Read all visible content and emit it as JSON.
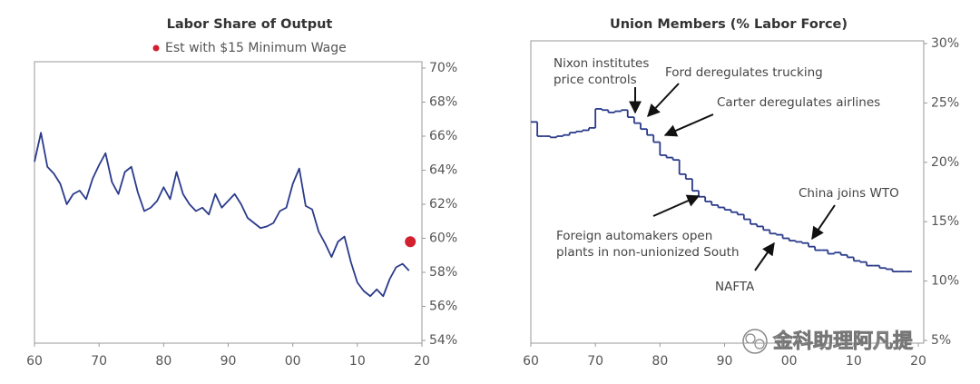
{
  "chart_data": [
    {
      "type": "line",
      "title": "Labor Share of Output",
      "y_axis_side": "right",
      "xlim": [
        1960,
        2020
      ],
      "ylim": [
        54,
        70
      ],
      "xticks": [
        {
          "value": 1960,
          "label": "60"
        },
        {
          "value": 1970,
          "label": "70"
        },
        {
          "value": 1980,
          "label": "80"
        },
        {
          "value": 1990,
          "label": "90"
        },
        {
          "value": 2000,
          "label": "00"
        },
        {
          "value": 2010,
          "label": "10"
        },
        {
          "value": 2020,
          "label": "20"
        }
      ],
      "yticks": [
        {
          "value": 54,
          "label": "54%"
        },
        {
          "value": 56,
          "label": "56%"
        },
        {
          "value": 58,
          "label": "58%"
        },
        {
          "value": 60,
          "label": "60%"
        },
        {
          "value": 62,
          "label": "62%"
        },
        {
          "value": 64,
          "label": "64%"
        },
        {
          "value": 66,
          "label": "66%"
        },
        {
          "value": 68,
          "label": "68%"
        },
        {
          "value": 70,
          "label": "70%"
        }
      ],
      "series": [
        {
          "color": "#2a3a8a",
          "mark": "line",
          "x": [
            1960,
            1961,
            1962,
            1963,
            1964,
            1965,
            1966,
            1967,
            1968,
            1969,
            1970,
            1971,
            1972,
            1973,
            1974,
            1975,
            1976,
            1977,
            1978,
            1979,
            1980,
            1981,
            1982,
            1983,
            1984,
            1985,
            1986,
            1987,
            1988,
            1989,
            1990,
            1991,
            1992,
            1993,
            1994,
            1995,
            1996,
            1997,
            1998,
            1999,
            2000,
            2001,
            2002,
            2003,
            2004,
            2005,
            2006,
            2007,
            2008,
            2009,
            2010,
            2011,
            2012,
            2013,
            2014,
            2015,
            2016,
            2017,
            2018
          ],
          "values": [
            64.5,
            66.2,
            64.2,
            63.8,
            63.2,
            62.0,
            62.6,
            62.8,
            62.3,
            63.5,
            64.3,
            65.0,
            63.3,
            62.6,
            63.9,
            64.2,
            62.7,
            61.6,
            61.8,
            62.2,
            63.0,
            62.3,
            63.9,
            62.6,
            62.0,
            61.6,
            61.8,
            61.4,
            62.6,
            61.8,
            62.2,
            62.6,
            62.0,
            61.2,
            60.9,
            60.6,
            60.7,
            60.9,
            61.6,
            61.8,
            63.2,
            64.1,
            61.9,
            61.7,
            60.4,
            59.7,
            58.9,
            59.8,
            60.1,
            58.6,
            57.4,
            56.9,
            56.6,
            57.0,
            56.6,
            57.6,
            58.3,
            58.5,
            58.1
          ]
        },
        {
          "name": "Est with $15 Minimum Wage",
          "color": "#d3202f",
          "mark": "point",
          "x": [
            2018.2
          ],
          "values": [
            59.8
          ]
        }
      ]
    },
    {
      "type": "step",
      "title": "Union Members (% Labor Force)",
      "y_axis_side": "right",
      "xlim": [
        1960,
        2020
      ],
      "ylim": [
        5,
        30
      ],
      "xticks": [
        {
          "value": 1960,
          "label": "60"
        },
        {
          "value": 1970,
          "label": "70"
        },
        {
          "value": 1980,
          "label": "80"
        },
        {
          "value": 1990,
          "label": "90"
        },
        {
          "value": 2000,
          "label": "00"
        },
        {
          "value": 2010,
          "label": "10"
        },
        {
          "value": 2020,
          "label": "20"
        }
      ],
      "yticks": [
        {
          "value": 5,
          "label": "5%"
        },
        {
          "value": 10,
          "label": "10%"
        },
        {
          "value": 15,
          "label": "15%"
        },
        {
          "value": 20,
          "label": "20%"
        },
        {
          "value": 25,
          "label": "25%"
        },
        {
          "value": 30,
          "label": "30%"
        }
      ],
      "series": [
        {
          "color": "#2a3a8a",
          "mark": "step",
          "x": [
            1960,
            1961,
            1962,
            1963,
            1964,
            1965,
            1966,
            1967,
            1968,
            1969,
            1970,
            1971,
            1972,
            1973,
            1974,
            1975,
            1976,
            1977,
            1978,
            1979,
            1980,
            1981,
            1982,
            1983,
            1984,
            1985,
            1986,
            1987,
            1988,
            1989,
            1990,
            1991,
            1992,
            1993,
            1994,
            1995,
            1996,
            1997,
            1998,
            1999,
            2000,
            2001,
            2002,
            2003,
            2004,
            2005,
            2006,
            2007,
            2008,
            2009,
            2010,
            2011,
            2012,
            2013,
            2014,
            2015,
            2016,
            2017,
            2018
          ],
          "values": [
            23.4,
            22.2,
            22.2,
            22.1,
            22.2,
            22.3,
            22.5,
            22.6,
            22.7,
            22.9,
            24.5,
            24.4,
            24.2,
            24.3,
            24.4,
            23.8,
            23.3,
            22.8,
            22.3,
            21.7,
            20.6,
            20.4,
            20.2,
            19.0,
            18.6,
            17.6,
            17.1,
            16.7,
            16.4,
            16.2,
            16.0,
            15.8,
            15.6,
            15.2,
            14.8,
            14.6,
            14.3,
            14.0,
            13.9,
            13.6,
            13.4,
            13.3,
            13.2,
            12.9,
            12.6,
            12.6,
            12.3,
            12.4,
            12.2,
            12.0,
            11.7,
            11.6,
            11.3,
            11.3,
            11.1,
            11.0,
            10.8,
            10.8,
            10.8
          ]
        }
      ],
      "annotations": [
        {
          "lines": [
            "Nixon institutes",
            "price controls"
          ]
        },
        {
          "lines": [
            "Ford deregulates trucking"
          ]
        },
        {
          "lines": [
            "Carter deregulates airlines"
          ]
        },
        {
          "lines": [
            "Foreign automakers open",
            "plants in non-unionized South"
          ]
        },
        {
          "lines": [
            "China joins WTO"
          ]
        },
        {
          "lines": [
            "NAFTA"
          ]
        }
      ]
    }
  ],
  "watermark": "金科助理阿凡提"
}
